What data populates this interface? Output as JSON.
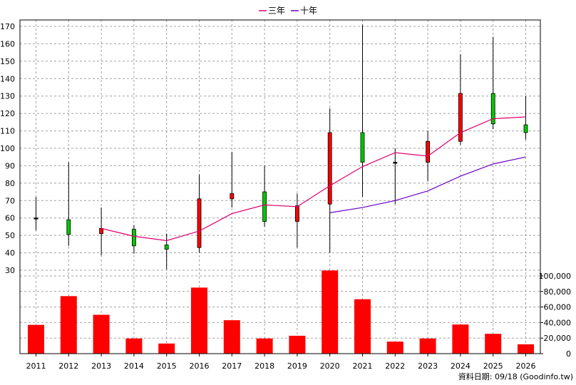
{
  "source_note": "資料日期: 09/18 (Goodinfo.tw)",
  "chart_data": {
    "type": "candlestick-with-volume",
    "categories": [
      "2011",
      "2012",
      "2013",
      "2014",
      "2015",
      "2016",
      "2017",
      "2018",
      "2019",
      "2020",
      "2021",
      "2022",
      "2023",
      "2024",
      "2025",
      "2026"
    ],
    "legend": [
      {
        "name": "三年",
        "color": "#e0006e"
      },
      {
        "name": "十年",
        "color": "#6a00c8"
      }
    ],
    "legend_position": "top-center",
    "grid": true,
    "price_axis": {
      "min": 30,
      "max": 170,
      "ticks": [
        30,
        40,
        50,
        60,
        70,
        80,
        90,
        100,
        110,
        120,
        130,
        140,
        150,
        160,
        170
      ]
    },
    "volume_axis": {
      "min": 0,
      "max": 100000,
      "ticks": [
        0,
        20000,
        40000,
        60000,
        80000,
        100000
      ],
      "tick_labels": [
        "0",
        "20,000",
        "40,000",
        "60,000",
        "80,000",
        "100,000"
      ]
    },
    "candles": [
      {
        "year": "2011",
        "open": 60,
        "close": 60,
        "high": 72,
        "low": 53,
        "color": "#000000"
      },
      {
        "year": "2012",
        "open": 50.5,
        "close": 59,
        "high": 92,
        "low": 44,
        "color": "#00c800"
      },
      {
        "year": "2013",
        "open": 54,
        "close": 51,
        "high": 66,
        "low": 38.5,
        "color": "#ff0000"
      },
      {
        "year": "2014",
        "open": 44,
        "close": 53.5,
        "high": 56,
        "low": 39.5,
        "color": "#00c800"
      },
      {
        "year": "2015",
        "open": 42,
        "close": 44.5,
        "high": 51,
        "low": 30.5,
        "color": "#00c800"
      },
      {
        "year": "2016",
        "open": 71,
        "close": 43,
        "high": 85,
        "low": 40,
        "color": "#ff0000"
      },
      {
        "year": "2017",
        "open": 74,
        "close": 71,
        "high": 98,
        "low": 66,
        "color": "#ff0000"
      },
      {
        "year": "2018",
        "open": 58,
        "close": 75,
        "high": 90,
        "low": 55,
        "color": "#00c800"
      },
      {
        "year": "2019",
        "open": 67,
        "close": 58,
        "high": 74,
        "low": 43,
        "color": "#ff0000"
      },
      {
        "year": "2020",
        "open": 109,
        "close": 68,
        "high": 123,
        "low": 40,
        "color": "#ff0000"
      },
      {
        "year": "2021",
        "open": 92,
        "close": 109,
        "high": 171,
        "low": 72,
        "color": "#00c800"
      },
      {
        "year": "2022",
        "open": 92,
        "close": 92,
        "high": 100,
        "low": 68,
        "color": "#000000"
      },
      {
        "year": "2023",
        "open": 104,
        "close": 92,
        "high": 110,
        "low": 81,
        "color": "#ff0000"
      },
      {
        "year": "2024",
        "open": 131.5,
        "close": 104,
        "high": 154,
        "low": 102,
        "color": "#ff0000"
      },
      {
        "year": "2025",
        "open": 114,
        "close": 131.5,
        "high": 164,
        "low": 111,
        "color": "#00c800"
      },
      {
        "year": "2026",
        "open": 109,
        "close": 113.5,
        "high": 130,
        "low": 105,
        "color": "#00c800"
      }
    ],
    "series": [
      {
        "name": "三年",
        "color": "#e0006e",
        "values": [
          null,
          null,
          54,
          49.5,
          47,
          52.5,
          62.5,
          67.5,
          66.5,
          78.5,
          89.5,
          97.5,
          95.5,
          109,
          117,
          118
        ]
      },
      {
        "name": "十年",
        "color": "#6a00c8",
        "values": [
          null,
          null,
          null,
          null,
          null,
          null,
          null,
          null,
          null,
          63,
          66,
          70,
          75.5,
          84,
          91,
          95
        ]
      }
    ],
    "volume": {
      "color": "#ff0000",
      "values": [
        37000,
        74000,
        50000,
        19500,
        13000,
        85000,
        43000,
        19500,
        23000,
        107000,
        70000,
        15500,
        19500,
        37500,
        25500,
        12000
      ]
    }
  }
}
